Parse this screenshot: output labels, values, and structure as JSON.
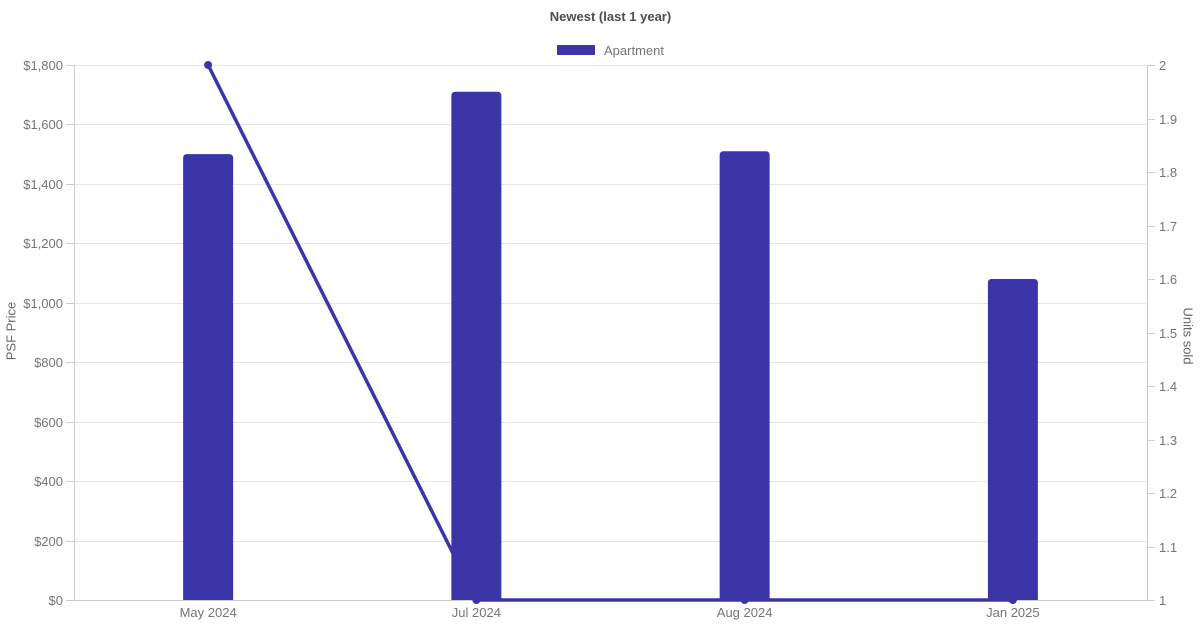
{
  "chart": {
    "title": "Newest (last 1 year)",
    "legend": {
      "items": [
        {
          "label": "Apartment",
          "color": "#3b35a8"
        }
      ]
    },
    "left_axis_title": "PSF Price",
    "right_axis_title": "Units sold"
  },
  "chart_data": {
    "type": "combo",
    "title": "Newest (last 1 year)",
    "legend_position": "top",
    "grid": true,
    "categories": [
      "May 2024",
      "Jul 2024",
      "Aug 2024",
      "Jan 2025"
    ],
    "series": [
      {
        "name": "Apartment",
        "type": "bar",
        "axis": "left",
        "color": "#3b35a8",
        "values": [
          1500,
          1710,
          1510,
          1080
        ]
      },
      {
        "name": "Units sold",
        "type": "line",
        "axis": "right",
        "color": "#3b35a8",
        "values": [
          2,
          1,
          1,
          1
        ]
      }
    ],
    "left_axis": {
      "label": "PSF Price",
      "min": 0,
      "max": 1800,
      "tick_values": [
        0,
        200,
        400,
        600,
        800,
        1000,
        1200,
        1400,
        1600,
        1800
      ],
      "tick_labels": [
        "$0",
        "$200",
        "$400",
        "$600",
        "$800",
        "$1,000",
        "$1,200",
        "$1,400",
        "$1,600",
        "$1,800"
      ]
    },
    "right_axis": {
      "label": "Units sold",
      "min": 1,
      "max": 2,
      "tick_values": [
        1,
        1.1,
        1.2,
        1.3,
        1.4,
        1.5,
        1.6,
        1.7,
        1.8,
        1.9,
        2
      ],
      "tick_labels": [
        "1",
        "1.1",
        "1.2",
        "1.3",
        "1.4",
        "1.5",
        "1.6",
        "1.7",
        "1.8",
        "1.9",
        "2"
      ]
    }
  },
  "colors": {
    "accent": "#3b35a8",
    "grid_line": "#e6e6e6",
    "axis_line": "#cccccc",
    "tick_text": "#757575",
    "title_text": "#4d4d4d"
  }
}
